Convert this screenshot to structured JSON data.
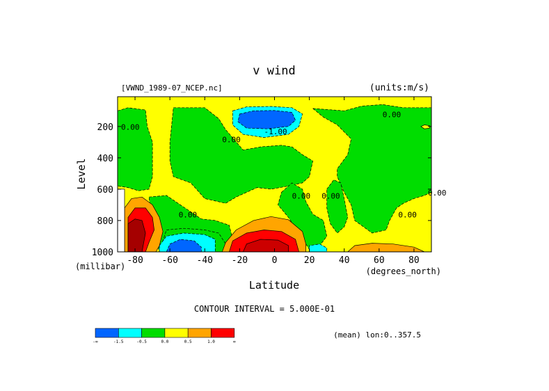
{
  "chart_data": {
    "type": "heatmap",
    "title": "v wind",
    "file_label": "[VWND_1989-07_NCEP.nc]",
    "units_label": "(units:m/s)",
    "xlabel": "Latitude",
    "xunits": "(degrees_north)",
    "ylabel": "Level",
    "yunits": "(millibar)",
    "xlim": [
      -90,
      90
    ],
    "ylim": [
      1000,
      10
    ],
    "x_ticks": [
      -80,
      -60,
      -40,
      -20,
      0,
      20,
      40,
      60,
      80
    ],
    "x_tick_labels": [
      "-80",
      "-60",
      "-40",
      "-20",
      "0",
      "20",
      "40",
      "60",
      "80"
    ],
    "y_ticks": [
      200,
      400,
      600,
      800,
      1000
    ],
    "y_tick_labels": [
      "200",
      "400",
      "600",
      "800",
      "1000"
    ],
    "contour_interval_label": "CONTOUR INTERVAL = 5.000E-01",
    "mean_label": "(mean) lon:0..357.5",
    "contour_labels": [
      {
        "text": "0.00",
        "x": -88,
        "y": 220
      },
      {
        "text": "-1.00",
        "x": -6,
        "y": 250
      },
      {
        "text": "0.00",
        "x": 62,
        "y": 140
      },
      {
        "text": "0.00",
        "x": -30,
        "y": 300
      },
      {
        "text": "0.00",
        "x": 10,
        "y": 660
      },
      {
        "text": "0.00",
        "x": 27,
        "y": 660
      },
      {
        "text": "0.00",
        "x": -55,
        "y": 780
      },
      {
        "text": "0.00",
        "x": 71,
        "y": 780
      },
      {
        "text": "0.00",
        "x": 88,
        "y": 640
      }
    ],
    "color_scale": {
      "bins": [
        "#0066ff",
        "#00ffff",
        "#00dd00",
        "#ffff00",
        "#ffa500",
        "#ff0000"
      ],
      "labels": [
        "-∞",
        "-1.5",
        "-0.5",
        "0.0",
        "0.5",
        "1.0",
        "∞"
      ]
    },
    "regions": [
      {
        "name": "upper-south-green",
        "value": -0.2,
        "color": "#00dd00",
        "points": [
          [
            -90,
            100
          ],
          [
            -84,
            80
          ],
          [
            -74,
            95
          ],
          [
            -73,
            200
          ],
          [
            -70,
            300
          ],
          [
            -70,
            400
          ],
          [
            -70,
            520
          ],
          [
            -72,
            600
          ],
          [
            -78,
            610
          ],
          [
            -84,
            590
          ],
          [
            -90,
            580
          ]
        ]
      },
      {
        "name": "mid-green-column",
        "value": -0.2,
        "color": "#00dd00",
        "points": [
          [
            -58,
            80
          ],
          [
            -40,
            80
          ],
          [
            -32,
            150
          ],
          [
            -28,
            220
          ],
          [
            -18,
            350
          ],
          [
            -8,
            330
          ],
          [
            4,
            320
          ],
          [
            10,
            330
          ],
          [
            16,
            380
          ],
          [
            22,
            420
          ],
          [
            20,
            520
          ],
          [
            16,
            560
          ],
          [
            8,
            580
          ],
          [
            -2,
            600
          ],
          [
            -10,
            590
          ],
          [
            -22,
            650
          ],
          [
            -28,
            690
          ],
          [
            -40,
            660
          ],
          [
            -48,
            560
          ],
          [
            -58,
            520
          ],
          [
            -60,
            420
          ],
          [
            -60,
            300
          ]
        ]
      },
      {
        "name": "north-green",
        "value": -0.2,
        "color": "#00dd00",
        "points": [
          [
            22,
            85
          ],
          [
            40,
            100
          ],
          [
            50,
            70
          ],
          [
            62,
            60
          ],
          [
            74,
            80
          ],
          [
            90,
            80
          ],
          [
            90,
            620
          ],
          [
            86,
            640
          ],
          [
            80,
            660
          ],
          [
            74,
            690
          ],
          [
            70,
            720
          ],
          [
            66,
            800
          ],
          [
            64,
            860
          ],
          [
            56,
            880
          ],
          [
            46,
            800
          ],
          [
            44,
            700
          ],
          [
            40,
            620
          ],
          [
            36,
            520
          ],
          [
            36,
            470
          ],
          [
            42,
            380
          ],
          [
            44,
            280
          ],
          [
            36,
            190
          ],
          [
            28,
            140
          ]
        ]
      },
      {
        "name": "equatorial-green-lobe",
        "value": -0.2,
        "color": "#00dd00",
        "points": [
          [
            4,
            620
          ],
          [
            10,
            560
          ],
          [
            16,
            600
          ],
          [
            18,
            680
          ],
          [
            22,
            760
          ],
          [
            28,
            800
          ],
          [
            30,
            900
          ],
          [
            26,
            960
          ],
          [
            20,
            985
          ],
          [
            14,
            880
          ],
          [
            8,
            780
          ],
          [
            2,
            700
          ]
        ]
      },
      {
        "name": "northeast-green-spur",
        "value": -0.2,
        "color": "#00dd00",
        "points": [
          [
            30,
            600
          ],
          [
            34,
            540
          ],
          [
            38,
            560
          ],
          [
            40,
            660
          ],
          [
            42,
            780
          ],
          [
            40,
            840
          ],
          [
            36,
            880
          ],
          [
            32,
            820
          ],
          [
            30,
            720
          ]
        ]
      },
      {
        "name": "south-low-green",
        "value": -0.2,
        "color": "#00dd00",
        "points": [
          [
            -72,
            650
          ],
          [
            -62,
            640
          ],
          [
            -54,
            700
          ],
          [
            -42,
            790
          ],
          [
            -34,
            800
          ],
          [
            -26,
            830
          ],
          [
            -24,
            920
          ],
          [
            -26,
            1000
          ],
          [
            -66,
            1000
          ],
          [
            -70,
            820
          ]
        ]
      },
      {
        "name": "south-low-green-strip",
        "value": -0.2,
        "color": "#00dd00",
        "points": [
          [
            -62,
            860
          ],
          [
            -52,
            850
          ],
          [
            -40,
            860
          ],
          [
            -32,
            880
          ],
          [
            -28,
            950
          ],
          [
            -28,
            1000
          ],
          [
            -66,
            1000
          ]
        ]
      },
      {
        "name": "tropical-cyan-jet",
        "value": -1.0,
        "color": "#00ffff",
        "points": [
          [
            -24,
            100
          ],
          [
            -16,
            75
          ],
          [
            -2,
            72
          ],
          [
            10,
            80
          ],
          [
            16,
            120
          ],
          [
            14,
            200
          ],
          [
            8,
            250
          ],
          [
            -6,
            270
          ],
          [
            -18,
            250
          ],
          [
            -24,
            190
          ]
        ]
      },
      {
        "name": "tropical-blue-core",
        "value": -1.5,
        "color": "#0066ff",
        "points": [
          [
            -20,
            120
          ],
          [
            -12,
            100
          ],
          [
            0,
            98
          ],
          [
            10,
            110
          ],
          [
            12,
            160
          ],
          [
            8,
            200
          ],
          [
            -4,
            215
          ],
          [
            -16,
            210
          ],
          [
            -21,
            170
          ]
        ]
      },
      {
        "name": "south-cyan-low",
        "value": -1.0,
        "color": "#00ffff",
        "points": [
          [
            -66,
            960
          ],
          [
            -62,
            900
          ],
          [
            -52,
            880
          ],
          [
            -40,
            890
          ],
          [
            -34,
            920
          ],
          [
            -34,
            1000
          ],
          [
            -66,
            1000
          ]
        ]
      },
      {
        "name": "south-blue-low",
        "value": -1.5,
        "color": "#0066ff",
        "points": [
          [
            -62,
            1000
          ],
          [
            -60,
            950
          ],
          [
            -54,
            920
          ],
          [
            -46,
            930
          ],
          [
            -42,
            970
          ],
          [
            -42,
            1000
          ]
        ]
      },
      {
        "name": "equator-cyan-patch",
        "value": -1.0,
        "color": "#00ffff",
        "points": [
          [
            20,
            1000
          ],
          [
            20,
            960
          ],
          [
            26,
            950
          ],
          [
            30,
            975
          ],
          [
            30,
            1000
          ]
        ]
      },
      {
        "name": "equator-orange-low",
        "value": 0.5,
        "color": "#ffa500",
        "points": [
          [
            -30,
            1000
          ],
          [
            -28,
            940
          ],
          [
            -22,
            860
          ],
          [
            -12,
            800
          ],
          [
            -2,
            775
          ],
          [
            8,
            795
          ],
          [
            16,
            870
          ],
          [
            18,
            950
          ],
          [
            18,
            1000
          ]
        ]
      },
      {
        "name": "equator-red-low",
        "value": 1.0,
        "color": "#ff0000",
        "points": [
          [
            -26,
            1000
          ],
          [
            -24,
            930
          ],
          [
            -16,
            880
          ],
          [
            -6,
            860
          ],
          [
            4,
            870
          ],
          [
            12,
            920
          ],
          [
            14,
            1000
          ]
        ]
      },
      {
        "name": "north-orange-low",
        "value": 0.5,
        "color": "#ffa500",
        "points": [
          [
            42,
            1000
          ],
          [
            46,
            960
          ],
          [
            56,
            945
          ],
          [
            68,
            950
          ],
          [
            80,
            970
          ],
          [
            86,
            1000
          ]
        ]
      },
      {
        "name": "south-orange-high",
        "value": 0.5,
        "color": "#ffa500",
        "points": [
          [
            -86,
            720
          ],
          [
            -82,
            660
          ],
          [
            -76,
            650
          ],
          [
            -70,
            700
          ],
          [
            -66,
            780
          ],
          [
            -64,
            870
          ],
          [
            -66,
            960
          ],
          [
            -68,
            1000
          ],
          [
            -86,
            1000
          ]
        ]
      },
      {
        "name": "south-red-high",
        "value": 1.0,
        "color": "#ff0000",
        "points": [
          [
            -84,
            780
          ],
          [
            -80,
            720
          ],
          [
            -74,
            720
          ],
          [
            -70,
            780
          ],
          [
            -69,
            860
          ],
          [
            -72,
            940
          ],
          [
            -74,
            1000
          ],
          [
            -84,
            1000
          ]
        ]
      },
      {
        "name": "south-darkred-core",
        "value": 1.5,
        "color": "#a50000",
        "points": [
          [
            -84,
            820
          ],
          [
            -80,
            790
          ],
          [
            -76,
            800
          ],
          [
            -74,
            880
          ],
          [
            -76,
            1000
          ],
          [
            -84,
            1000
          ]
        ]
      },
      {
        "name": "equator-darkred-core",
        "value": 1.5,
        "color": "#cc0000",
        "points": [
          [
            -18,
            1000
          ],
          [
            -16,
            950
          ],
          [
            -8,
            920
          ],
          [
            2,
            925
          ],
          [
            8,
            960
          ],
          [
            8,
            1000
          ]
        ]
      },
      {
        "name": "south-edge-white",
        "value": null,
        "color": "#ffffff",
        "points": [
          [
            -90,
            600
          ],
          [
            -86,
            600
          ],
          [
            -86,
            1000
          ],
          [
            -90,
            1000
          ]
        ]
      },
      {
        "name": "north-edge-yellow-blob",
        "value": 0.2,
        "color": "#ffff00",
        "points": [
          [
            84,
            200
          ],
          [
            86,
            190
          ],
          [
            89,
            195
          ],
          [
            89,
            210
          ],
          [
            86,
            215
          ]
        ]
      }
    ]
  }
}
